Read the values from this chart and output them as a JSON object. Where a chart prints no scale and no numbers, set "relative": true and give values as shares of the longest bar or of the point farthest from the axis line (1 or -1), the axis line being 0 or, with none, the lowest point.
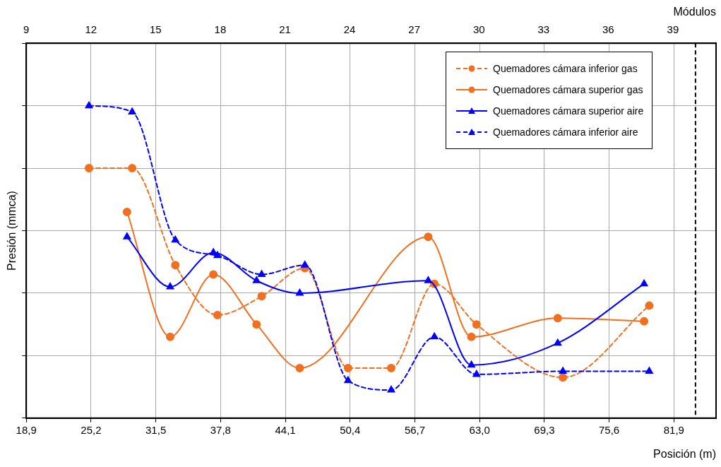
{
  "chart_data": {
    "type": "line",
    "relative": true,
    "xlabel": "Posición (m)",
    "x2label": "Módulos",
    "ylabel": "Presión (mmca)",
    "xlim": [
      18.9,
      86.0
    ],
    "xticks": [
      {
        "value": 18.9,
        "label": "18,9"
      },
      {
        "value": 25.2,
        "label": "25,2"
      },
      {
        "value": 31.5,
        "label": "31,5"
      },
      {
        "value": 37.8,
        "label": "37,8"
      },
      {
        "value": 44.1,
        "label": "44,1"
      },
      {
        "value": 50.4,
        "label": "50,4"
      },
      {
        "value": 56.7,
        "label": "56,7"
      },
      {
        "value": 63.0,
        "label": "63,0"
      },
      {
        "value": 69.3,
        "label": "69,3"
      },
      {
        "value": 75.6,
        "label": "75,6"
      },
      {
        "value": 81.9,
        "label": "81,9"
      }
    ],
    "x2lim": [
      9,
      41
    ],
    "x2ticks": [
      9,
      12,
      15,
      18,
      21,
      24,
      27,
      30,
      33,
      36,
      39
    ],
    "grid": true,
    "legend": "top right",
    "ref_lines": [
      {
        "axis": "x",
        "value": 84.0,
        "color": "#000000",
        "line_style": "dashed"
      }
    ],
    "series": [
      {
        "name": "Quemadores cámara inferior gas",
        "color": "#f07020",
        "marker": "circle",
        "line_style": "dashed",
        "x": [
          25.0,
          29.2,
          33.4,
          37.5,
          41.8,
          46.0,
          50.2,
          54.4,
          58.6,
          62.7,
          71.1,
          79.5
        ],
        "values": [
          0.8,
          0.8,
          0.49,
          0.33,
          0.39,
          0.48,
          0.16,
          0.16,
          0.43,
          0.3,
          0.13,
          0.36
        ]
      },
      {
        "name": "Quemadores cámara superior gas",
        "color": "#f07020",
        "marker": "circle",
        "line_style": "solid",
        "x": [
          28.7,
          32.9,
          37.1,
          41.3,
          45.5,
          58.0,
          62.2,
          70.6,
          79.0
        ],
        "values": [
          0.66,
          0.26,
          0.46,
          0.3,
          0.16,
          0.58,
          0.26,
          0.32,
          0.31
        ]
      },
      {
        "name": "Quemadores cámara superior aire",
        "color": "#0000ff",
        "marker": "triangle",
        "line_style": "solid",
        "x": [
          28.7,
          32.9,
          37.1,
          41.3,
          45.5,
          58.0,
          62.2,
          70.6,
          79.0
        ],
        "values": [
          0.58,
          0.42,
          0.53,
          0.44,
          0.4,
          0.44,
          0.17,
          0.24,
          0.43
        ]
      },
      {
        "name": "Quemadores cámara inferior aire",
        "color": "#0000ff",
        "marker": "triangle",
        "line_style": "dashed",
        "x": [
          25.0,
          29.2,
          33.4,
          37.5,
          41.8,
          46.0,
          50.2,
          54.4,
          58.6,
          62.7,
          71.1,
          79.5
        ],
        "values": [
          1.0,
          0.98,
          0.57,
          0.52,
          0.46,
          0.49,
          0.12,
          0.09,
          0.26,
          0.14,
          0.15,
          0.15
        ]
      }
    ]
  }
}
